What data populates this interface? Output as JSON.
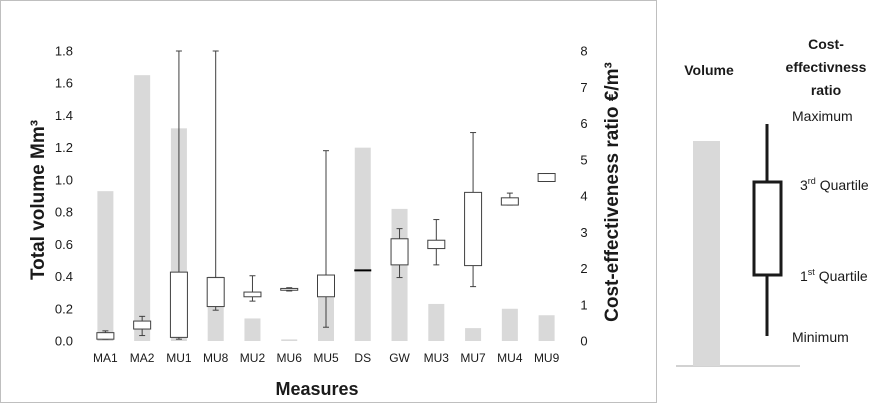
{
  "chart_data": {
    "type": "bar",
    "categories": [
      "MA1",
      "MA2",
      "MU1",
      "MU8",
      "MU2",
      "MU6",
      "MU5",
      "DS",
      "GW",
      "MU3",
      "MU7",
      "MU4",
      "MU9"
    ],
    "xlabel": "Measures",
    "ylabel_left": "Total volume  Mm³",
    "ylabel_right": "Cost-effectiveness ratio €/m³",
    "ylim_left": [
      0,
      1.8
    ],
    "ylim_right": [
      0,
      8
    ],
    "yticks_left": [
      "0.0",
      "0.2",
      "0.4",
      "0.6",
      "0.8",
      "1.0",
      "1.2",
      "1.4",
      "1.6",
      "1.8"
    ],
    "yticks_right": [
      "0",
      "1",
      "2",
      "3",
      "4",
      "5",
      "6",
      "7",
      "8"
    ],
    "grid": false,
    "series": [
      {
        "name": "Volume",
        "axis": "left",
        "values": [
          0.93,
          1.65,
          1.32,
          0.4,
          0.14,
          0.01,
          0.27,
          1.2,
          0.82,
          0.23,
          0.08,
          0.2,
          0.16
        ]
      }
    ],
    "boxplots": {
      "axis": "right",
      "boxes": [
        {
          "category": "MA1",
          "min": 0.05,
          "q1": 0.05,
          "q3": 0.23,
          "max": 0.28
        },
        {
          "category": "MA2",
          "min": 0.15,
          "q1": 0.33,
          "q3": 0.55,
          "max": 0.68
        },
        {
          "category": "MU1",
          "min": 0.05,
          "q1": 0.1,
          "q3": 1.9,
          "max": 8.0
        },
        {
          "category": "MU8",
          "min": 0.85,
          "q1": 0.95,
          "q3": 1.75,
          "max": 8.0
        },
        {
          "category": "MU2",
          "min": 1.1,
          "q1": 1.22,
          "q3": 1.35,
          "max": 1.8
        },
        {
          "category": "MU6",
          "min": 1.38,
          "q1": 1.4,
          "q3": 1.45,
          "max": 1.47
        },
        {
          "category": "MU5",
          "min": 0.38,
          "q1": 1.22,
          "q3": 1.82,
          "max": 5.25
        },
        {
          "category": "DS",
          "min": 1.95,
          "q1": 1.95,
          "q3": 1.95,
          "max": 1.95
        },
        {
          "category": "GW",
          "min": 1.75,
          "q1": 2.1,
          "q3": 2.82,
          "max": 3.1
        },
        {
          "category": "MU3",
          "min": 2.1,
          "q1": 2.55,
          "q3": 2.78,
          "max": 3.35
        },
        {
          "category": "MU7",
          "min": 1.5,
          "q1": 2.08,
          "q3": 4.1,
          "max": 5.75
        },
        {
          "category": "MU4",
          "min": 3.75,
          "q1": 3.75,
          "q3": 3.95,
          "max": 4.08
        },
        {
          "category": "MU9",
          "min": 4.4,
          "q1": 4.4,
          "q3": 4.62,
          "max": 4.62
        }
      ]
    },
    "legend": {
      "volume_label": "Volume",
      "ratio_label_lines": [
        "Cost-",
        "effectivness",
        "ratio"
      ],
      "maximum": "Maximum",
      "q3": "3",
      "q3_sup": "rd",
      "q3_rest": " Quartile",
      "q1": "1",
      "q1_sup": "st",
      "q1_rest": " Quartile",
      "minimum": "Minimum"
    },
    "colors": {
      "bar": "#d9d9d9",
      "box_stroke": "#404040",
      "text": "#1a1a1a",
      "frame": "#bfbfbf"
    }
  }
}
